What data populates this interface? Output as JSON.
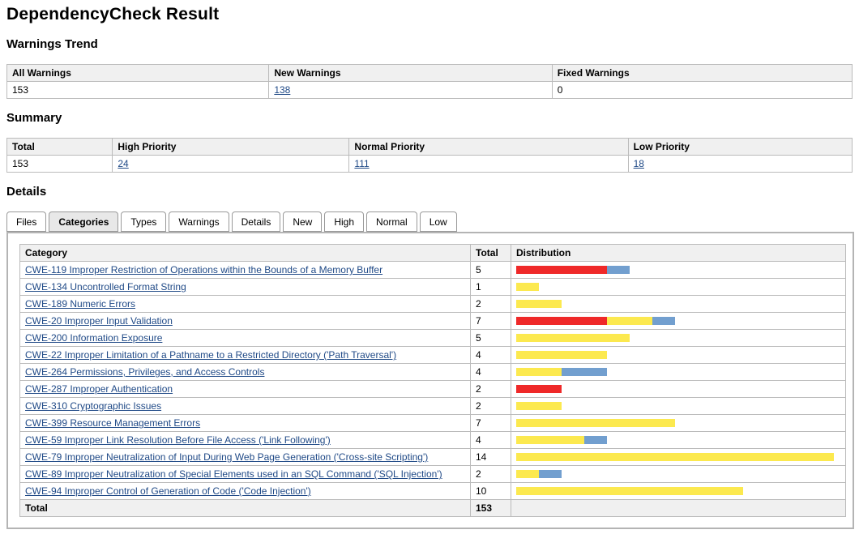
{
  "page_title": "DependencyCheck Result",
  "colors": {
    "link": "#204a87",
    "priority_high": "#ef2929",
    "priority_normal": "#fce94f",
    "priority_low": "#729fcf",
    "table_header_bg": "#f0f0f0",
    "active_tab_bg": "#e8e8e8"
  },
  "warnings_trend": {
    "heading": "Warnings Trend",
    "columns": [
      "All Warnings",
      "New Warnings",
      "Fixed Warnings"
    ],
    "all_warnings": "153",
    "new_warnings": "138",
    "fixed_warnings": "0"
  },
  "summary": {
    "heading": "Summary",
    "columns": [
      "Total",
      "High Priority",
      "Normal Priority",
      "Low Priority"
    ],
    "total": "153",
    "high_priority": "24",
    "normal_priority": "111",
    "low_priority": "18"
  },
  "details": {
    "heading": "Details",
    "tabs": [
      {
        "label": "Files",
        "active": false
      },
      {
        "label": "Categories",
        "active": true
      },
      {
        "label": "Types",
        "active": false
      },
      {
        "label": "Warnings",
        "active": false
      },
      {
        "label": "Details",
        "active": false
      },
      {
        "label": "New",
        "active": false
      },
      {
        "label": "High",
        "active": false
      },
      {
        "label": "Normal",
        "active": false
      },
      {
        "label": "Low",
        "active": false
      }
    ],
    "table": {
      "columns": [
        "Category",
        "Total",
        "Distribution"
      ],
      "rows": [
        {
          "category": "CWE-119 Improper Restriction of Operations within the Bounds of a Memory Buffer",
          "total": 5,
          "high": 4,
          "normal": 0,
          "low": 1
        },
        {
          "category": "CWE-134 Uncontrolled Format String",
          "total": 1,
          "high": 0,
          "normal": 1,
          "low": 0
        },
        {
          "category": "CWE-189 Numeric Errors",
          "total": 2,
          "high": 0,
          "normal": 2,
          "low": 0
        },
        {
          "category": "CWE-20 Improper Input Validation",
          "total": 7,
          "high": 4,
          "normal": 2,
          "low": 1
        },
        {
          "category": "CWE-200 Information Exposure",
          "total": 5,
          "high": 0,
          "normal": 5,
          "low": 0
        },
        {
          "category": "CWE-22 Improper Limitation of a Pathname to a Restricted Directory ('Path Traversal')",
          "total": 4,
          "high": 0,
          "normal": 4,
          "low": 0
        },
        {
          "category": "CWE-264 Permissions, Privileges, and Access Controls",
          "total": 4,
          "high": 0,
          "normal": 2,
          "low": 2
        },
        {
          "category": "CWE-287 Improper Authentication",
          "total": 2,
          "high": 2,
          "normal": 0,
          "low": 0
        },
        {
          "category": "CWE-310 Cryptographic Issues",
          "total": 2,
          "high": 0,
          "normal": 2,
          "low": 0
        },
        {
          "category": "CWE-399 Resource Management Errors",
          "total": 7,
          "high": 0,
          "normal": 7,
          "low": 0
        },
        {
          "category": "CWE-59 Improper Link Resolution Before File Access ('Link Following')",
          "total": 4,
          "high": 0,
          "normal": 3,
          "low": 1
        },
        {
          "category": "CWE-79 Improper Neutralization of Input During Web Page Generation ('Cross-site Scripting')",
          "total": 14,
          "high": 0,
          "normal": 14,
          "low": 0
        },
        {
          "category": "CWE-89 Improper Neutralization of Special Elements used in an SQL Command ('SQL Injection')",
          "total": 2,
          "high": 0,
          "normal": 1,
          "low": 1
        },
        {
          "category": "CWE-94 Improper Control of Generation of Code ('Code Injection')",
          "total": 10,
          "high": 0,
          "normal": 10,
          "low": 0
        }
      ],
      "footer_label": "Total",
      "footer_total": "153"
    }
  }
}
